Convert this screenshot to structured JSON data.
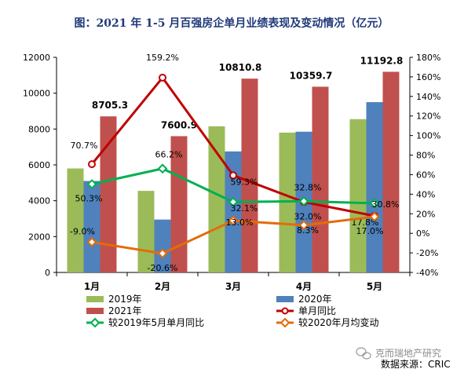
{
  "chart_data": {
    "type": "bar",
    "title": "图：2021 年 1-5 月百强房企单月业绩表现及变动情况（亿元）",
    "categories": [
      "1月",
      "2月",
      "3月",
      "4月",
      "5月"
    ],
    "y_left": {
      "ylim": [
        0,
        12000
      ],
      "ticks": [
        "0",
        "2000",
        "4000",
        "6000",
        "8000",
        "10000",
        "12000"
      ]
    },
    "y_right": {
      "ylim": [
        -40,
        180
      ],
      "ticks": [
        "-40%",
        "-20%",
        "0%",
        "20%",
        "40%",
        "60%",
        "80%",
        "100%",
        "120%",
        "140%",
        "160%",
        "180%"
      ]
    },
    "bars": [
      {
        "name": "2019年",
        "color": "#9bbb59",
        "values": [
          5800,
          4550,
          8150,
          7800,
          8550
        ]
      },
      {
        "name": "2020年",
        "color": "#4f81bd",
        "values": [
          5100,
          2950,
          6750,
          7850,
          9500
        ]
      },
      {
        "name": "2021年",
        "color": "#c0504d",
        "values": [
          8705.3,
          7600.9,
          10810.8,
          10359.7,
          11192.8
        ],
        "labels": [
          "8705.3",
          "7600.9",
          "10810.8",
          "10359.7",
          "11192.8"
        ]
      }
    ],
    "lines": [
      {
        "name": "单月同比",
        "color": "#c00000",
        "marker": "circle",
        "values": [
          70.7,
          159.2,
          59.3,
          32.0,
          17.8
        ],
        "labels": [
          "70.7%",
          "159.2%",
          "59.3%",
          "32.0%",
          "17.8%"
        ]
      },
      {
        "name": "较2019年5月单月同比",
        "color": "#00b050",
        "marker": "diamond",
        "values": [
          50.3,
          66.2,
          32.1,
          32.8,
          30.8
        ],
        "labels": [
          "50.3%",
          "66.2%",
          "32.1%",
          "32.8%",
          "30.8%"
        ]
      },
      {
        "name": "较2020年月均变动",
        "color": "#e36c09",
        "marker": "diamond",
        "values": [
          -9.0,
          -20.6,
          13.0,
          8.3,
          17.0
        ],
        "labels": [
          "-9.0%",
          "-20.6%",
          "13.0%",
          "8.3%",
          "17.0%"
        ]
      }
    ],
    "legend": [
      "2019年",
      "2020年",
      "2021年",
      "单月同比",
      "较2019年5月单月同比",
      "较2020年月均变动"
    ],
    "grid": false,
    "legend_position": "bottom"
  },
  "watermark": "克而瑞地产研究",
  "source": "数据来源：CRIC"
}
